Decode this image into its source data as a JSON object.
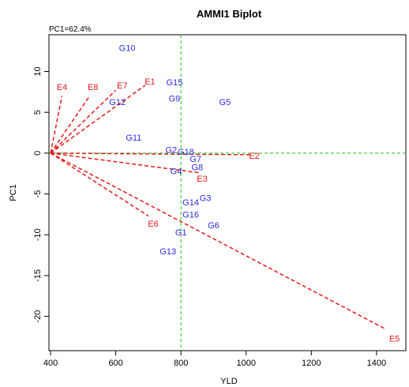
{
  "chart_data": {
    "type": "scatter",
    "title": "AMMI1 Biplot",
    "subtitle": "PC1=62.4%",
    "xlabel": "YLD",
    "ylabel": "PC1",
    "xlim": [
      395,
      1490
    ],
    "ylim": [
      -24.2,
      14.5
    ],
    "xticks": [
      400,
      600,
      800,
      1000,
      1200,
      1400
    ],
    "yticks": [
      -20,
      -15,
      -10,
      -5,
      0,
      5,
      10
    ],
    "grid": false,
    "reference_lines": {
      "x": 800,
      "y": 0
    },
    "origin": {
      "x": 400,
      "y": 0
    },
    "colors": {
      "genotype": "#2b2bdf",
      "environment": "#e31a1c",
      "vector": "#e31a1c",
      "reference": "#19c819"
    },
    "genotypes": [
      {
        "name": "G10",
        "x": 635,
        "y": 12.9
      },
      {
        "name": "G15",
        "x": 780,
        "y": 8.7
      },
      {
        "name": "G9",
        "x": 780,
        "y": 6.7
      },
      {
        "name": "G5",
        "x": 935,
        "y": 6.3
      },
      {
        "name": "G12",
        "x": 605,
        "y": 6.3
      },
      {
        "name": "G11",
        "x": 655,
        "y": 1.9
      },
      {
        "name": "G2",
        "x": 770,
        "y": 0.4
      },
      {
        "name": "G18",
        "x": 815,
        "y": 0.2
      },
      {
        "name": "G7",
        "x": 845,
        "y": -0.7
      },
      {
        "name": "G8",
        "x": 850,
        "y": -1.7
      },
      {
        "name": "G4",
        "x": 785,
        "y": -2.2
      },
      {
        "name": "G3",
        "x": 875,
        "y": -5.5
      },
      {
        "name": "G14",
        "x": 830,
        "y": -6.0
      },
      {
        "name": "G16",
        "x": 830,
        "y": -7.5
      },
      {
        "name": "G6",
        "x": 900,
        "y": -8.8
      },
      {
        "name": "G1",
        "x": 800,
        "y": -9.7
      },
      {
        "name": "G13",
        "x": 760,
        "y": -12.0
      }
    ],
    "environments": [
      {
        "name": "E4",
        "x": 435,
        "y": 8.1
      },
      {
        "name": "E8",
        "x": 530,
        "y": 8.1
      },
      {
        "name": "E7",
        "x": 620,
        "y": 8.3
      },
      {
        "name": "E1",
        "x": 705,
        "y": 8.8
      },
      {
        "name": "E2",
        "x": 1025,
        "y": -0.3
      },
      {
        "name": "E3",
        "x": 865,
        "y": -3.1
      },
      {
        "name": "E6",
        "x": 715,
        "y": -8.6
      },
      {
        "name": "E5",
        "x": 1455,
        "y": -22.7
      }
    ],
    "vector_ends": [
      {
        "name": "E4",
        "x": 435,
        "y": 7.0
      },
      {
        "name": "E8",
        "x": 520,
        "y": 7.0
      },
      {
        "name": "E7",
        "x": 600,
        "y": 7.7
      },
      {
        "name": "E1",
        "x": 690,
        "y": 8.3
      },
      {
        "name": "E2",
        "x": 1020,
        "y": -0.2
      },
      {
        "name": "E3",
        "x": 855,
        "y": -2.4
      },
      {
        "name": "E6",
        "x": 700,
        "y": -7.7
      },
      {
        "name": "E5",
        "x": 1430,
        "y": -21.6
      }
    ]
  }
}
